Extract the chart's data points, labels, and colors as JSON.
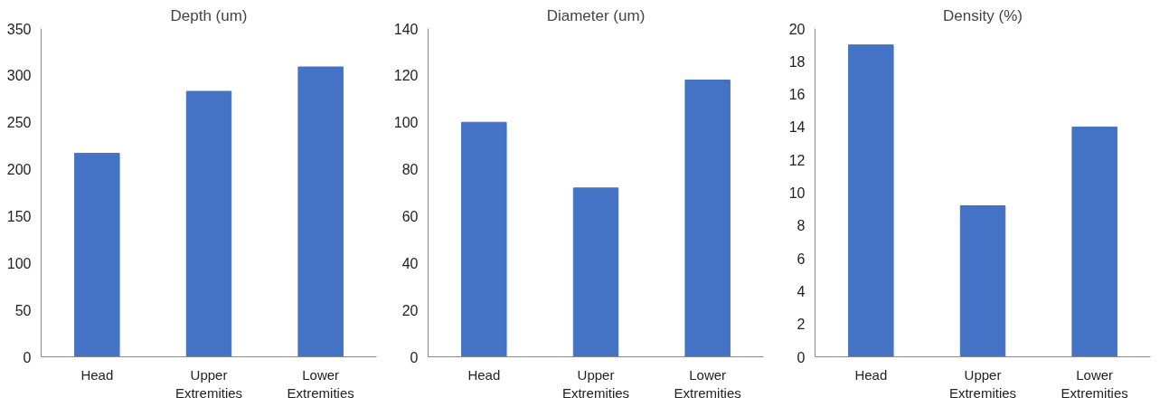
{
  "chart_data": [
    {
      "type": "bar",
      "title": "Depth (um)",
      "categories": [
        "Head",
        "Upper Extremities",
        "Lower Extremities"
      ],
      "values": [
        217,
        283,
        309
      ],
      "color": "#4472c4",
      "ylim": [
        0,
        350
      ],
      "yticks": [
        0,
        50,
        100,
        150,
        200,
        250,
        300,
        350
      ],
      "grid": false,
      "legend": false
    },
    {
      "type": "bar",
      "title": "Diameter (um)",
      "categories": [
        "Head",
        "Upper Extremities",
        "Lower Extremities"
      ],
      "values": [
        100,
        72,
        118
      ],
      "color": "#4472c4",
      "ylim": [
        0,
        140
      ],
      "yticks": [
        0,
        20,
        40,
        60,
        80,
        100,
        120,
        140
      ],
      "grid": false,
      "legend": false
    },
    {
      "type": "bar",
      "title": "Density (%)",
      "categories": [
        "Head",
        "Upper Extremities",
        "Lower Extremities"
      ],
      "values": [
        19.0,
        9.2,
        14.0
      ],
      "color": "#4472c4",
      "ylim": [
        0,
        20
      ],
      "yticks": [
        0,
        2,
        4,
        6,
        8,
        10,
        12,
        14,
        16,
        18,
        20
      ],
      "grid": false,
      "legend": false
    }
  ]
}
